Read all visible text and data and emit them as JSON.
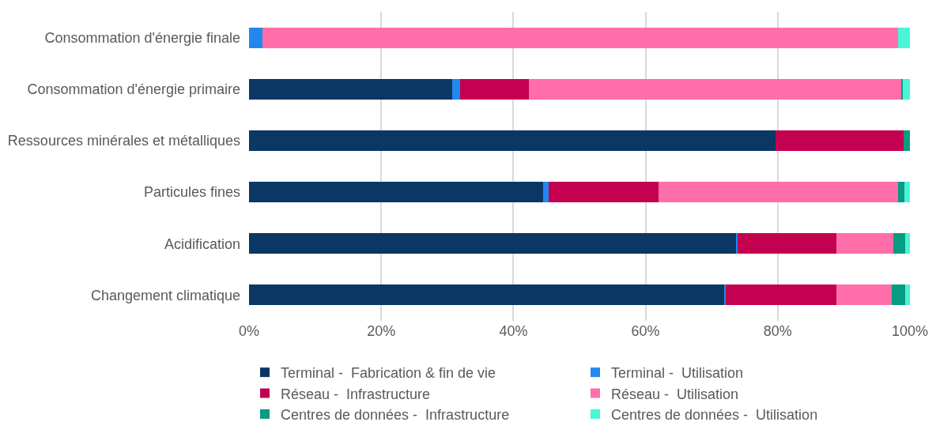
{
  "chart_data": {
    "type": "bar",
    "orientation": "horizontal",
    "stacked": true,
    "categories": [
      "Consommation d'énergie finale",
      "Consommation d'énergie primaire",
      "Ressources minérales et métalliques",
      "Particules fines",
      "Acidification",
      "Changement climatique"
    ],
    "series": [
      {
        "name": "Terminal -  Fabrication & fin de vie",
        "color": "#0a3764",
        "values": [
          0,
          30.7,
          79.7,
          44.5,
          73.8,
          72.0
        ]
      },
      {
        "name": "Terminal -  Utilisation",
        "color": "#2288ee",
        "values": [
          2.0,
          1.2,
          0,
          0.8,
          0.1,
          0.1
        ]
      },
      {
        "name": "Réseau -  Infrastructure",
        "color": "#c40050",
        "values": [
          0,
          10.4,
          19.3,
          16.7,
          15.0,
          16.8
        ]
      },
      {
        "name": "Réseau -  Utilisation",
        "color": "#ff6ea8",
        "values": [
          96.2,
          56.5,
          0,
          36.2,
          8.6,
          8.4
        ]
      },
      {
        "name": "Centres de données -  Infrastructure",
        "color": "#079b82",
        "values": [
          0,
          0.1,
          1.0,
          1.0,
          1.8,
          2.0
        ]
      },
      {
        "name": "Centres de données -  Utilisation",
        "color": "#4af5d8",
        "values": [
          1.8,
          1.1,
          0,
          0.8,
          0.7,
          0.7
        ]
      }
    ],
    "xlim": [
      0,
      100
    ],
    "xticks": [
      {
        "value": 0,
        "label": "0%"
      },
      {
        "value": 20,
        "label": "20%"
      },
      {
        "value": 40,
        "label": "40%"
      },
      {
        "value": 60,
        "label": "60%"
      },
      {
        "value": 80,
        "label": "80%"
      },
      {
        "value": 100,
        "label": "100%"
      }
    ],
    "grid": "x",
    "legend": "bottom"
  }
}
